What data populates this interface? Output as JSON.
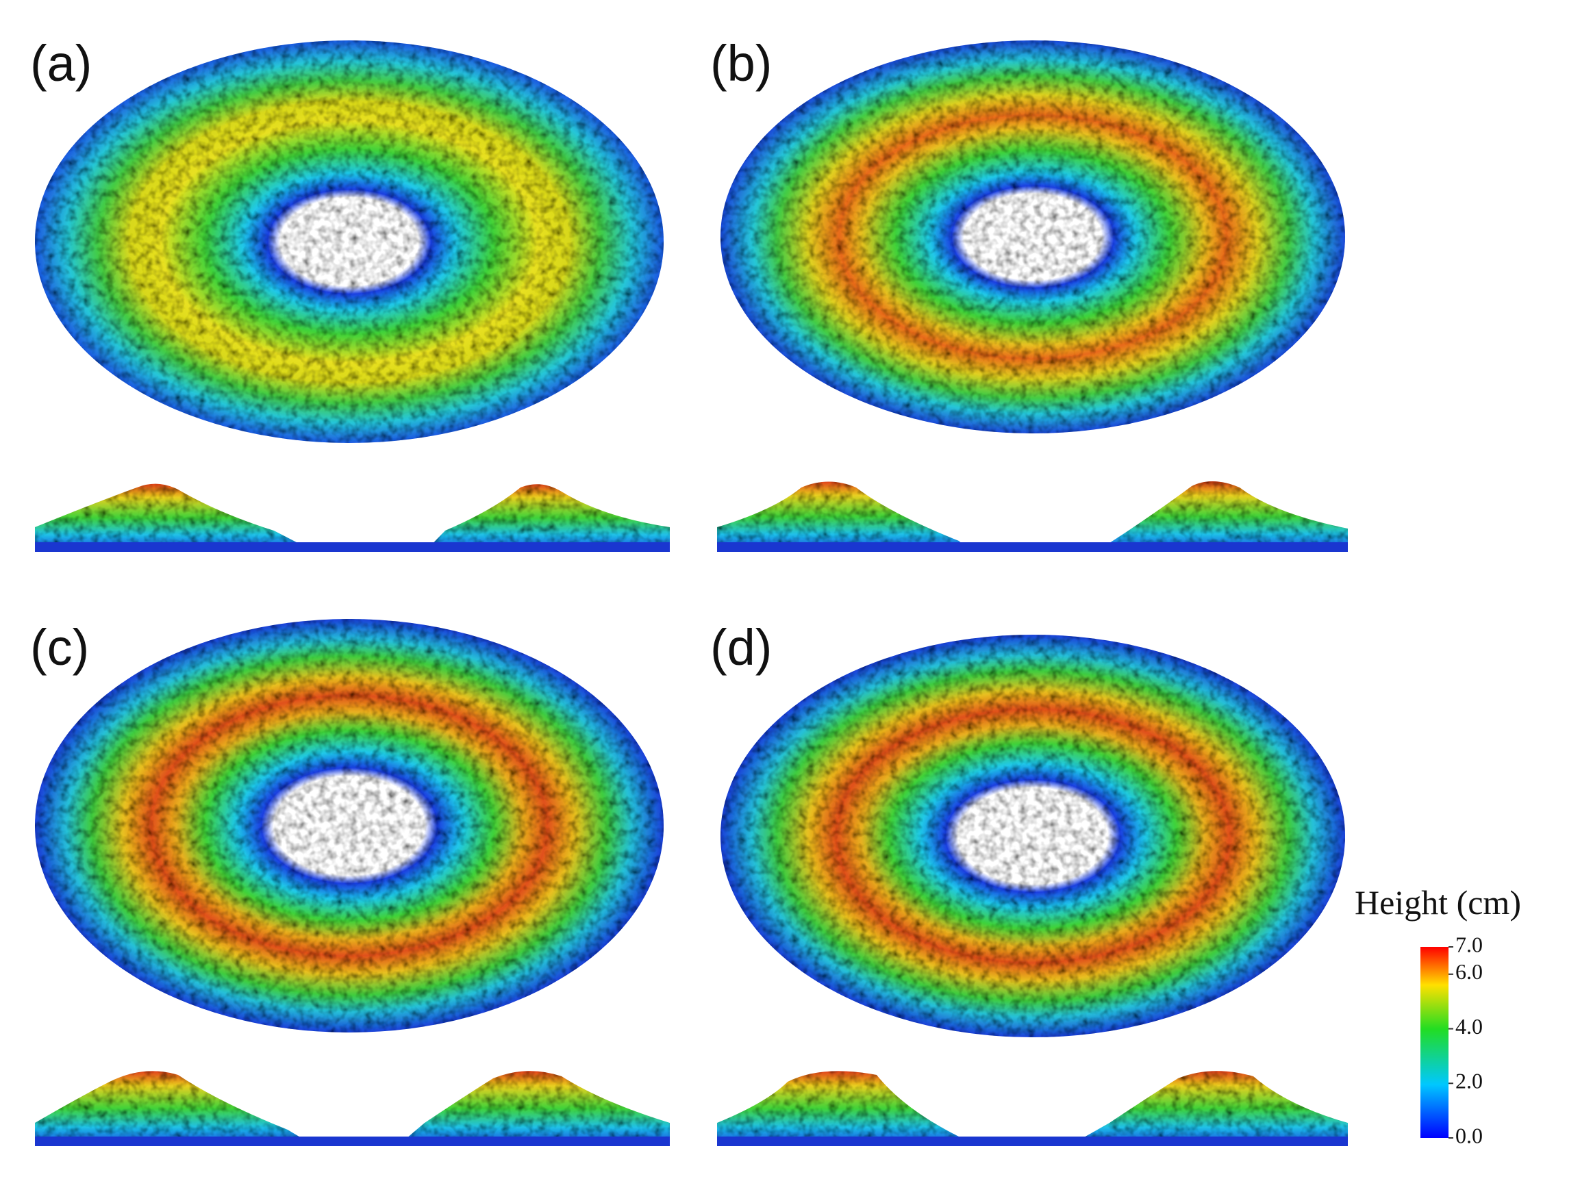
{
  "panels": [
    {
      "label": "(a)"
    },
    {
      "label": "(b)"
    },
    {
      "label": "(c)"
    },
    {
      "label": "(d)"
    }
  ],
  "colorbar": {
    "title": "Height (cm)",
    "ylim": [
      0,
      7
    ],
    "yticks": [
      {
        "value": 0,
        "label": "0.0"
      },
      {
        "value": 2,
        "label": "2.0"
      },
      {
        "value": 4,
        "label": "4.0"
      },
      {
        "value": 6,
        "label": "6.0"
      },
      {
        "value": 7,
        "label": "7.0"
      }
    ]
  }
}
